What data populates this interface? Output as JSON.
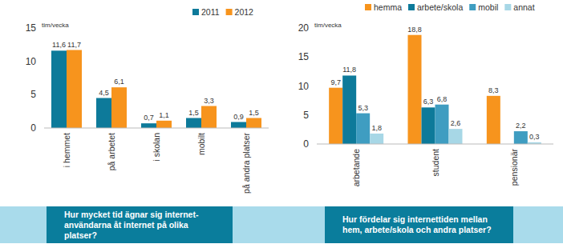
{
  "chart_data": [
    {
      "type": "bar",
      "title": "Hur mycket tid ägnar sig internet-användarna åt internet på olika platser?",
      "ylabel": "tim/vecka",
      "categories": [
        "i hemmet",
        "på arbetet",
        "i skolan",
        "mobilt",
        "på andra platser"
      ],
      "series": [
        {
          "name": "2011",
          "color": "#0d7a9a",
          "values": [
            11.6,
            4.5,
            0.7,
            1.5,
            0.9
          ],
          "value_labels": [
            "11,6",
            "4,5",
            "0,7",
            "1,5",
            "0,9"
          ]
        },
        {
          "name": "2012",
          "color": "#f7941d",
          "values": [
            11.7,
            6.1,
            1.1,
            3.3,
            1.5
          ],
          "value_labels": [
            "11,7",
            "6,1",
            "1,1",
            "3,3",
            "1,5"
          ]
        }
      ],
      "ylim": [
        0,
        15
      ],
      "yticks": [
        0,
        5,
        10,
        15
      ],
      "grid": false,
      "legend": "top-right",
      "data_labels": true
    },
    {
      "type": "bar",
      "title": "Hur fördelar sig internettiden mellan hem, arbete/skola och andra platser?",
      "ylabel": "tim/vecka",
      "categories": [
        "arbetande",
        "student",
        "pensionär"
      ],
      "series": [
        {
          "name": "hemma",
          "color": "#f7941d",
          "values": [
            9.7,
            18.8,
            8.3
          ],
          "value_labels": [
            "9,7",
            "18,8",
            "8,3"
          ]
        },
        {
          "name": "arbete/skola",
          "color": "#0d7a9a",
          "values": [
            11.8,
            6.3,
            null
          ],
          "value_labels": [
            "11,8",
            "6,3",
            null
          ]
        },
        {
          "name": "mobil",
          "color": "#3f9dc1",
          "values": [
            5.3,
            6.8,
            2.2
          ],
          "value_labels": [
            "5,3",
            "6,8",
            "2,2"
          ]
        },
        {
          "name": "annat",
          "color": "#a7d7e6",
          "values": [
            1.8,
            2.6,
            0.3
          ],
          "value_labels": [
            "1,8",
            "2,6",
            "0,3"
          ]
        }
      ],
      "ylim": [
        0,
        20
      ],
      "yticks": [
        0,
        5,
        10,
        15,
        20
      ],
      "grid": false,
      "legend": "top",
      "data_labels": true
    }
  ]
}
